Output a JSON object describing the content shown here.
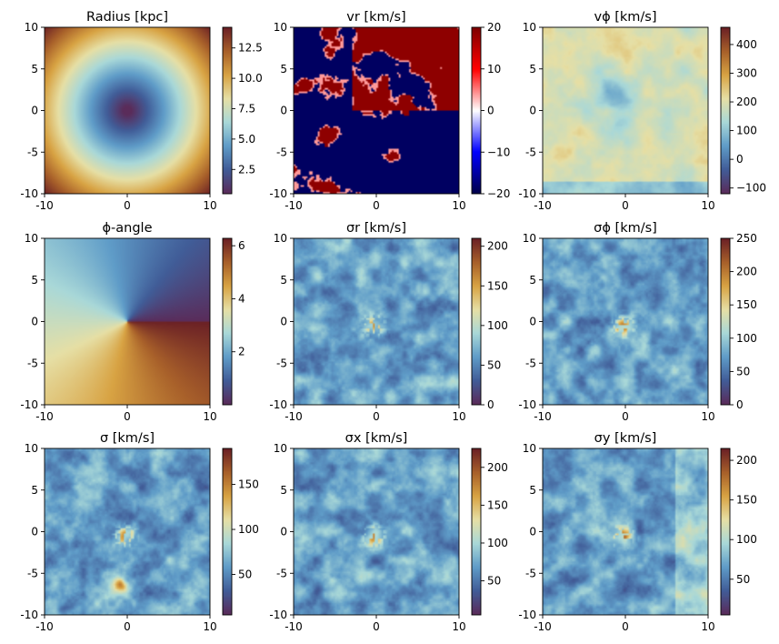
{
  "figure": {
    "colormaps": {
      "twilight_warm": [
        "#5a2c5a",
        "#415d98",
        "#5f9cc8",
        "#a9d8d8",
        "#e6dfa5",
        "#d8a343",
        "#a8602a",
        "#6b2125"
      ],
      "seismic": [
        "#00004c",
        "#0000ff",
        "#ffffff",
        "#ff0000",
        "#7f0000"
      ]
    }
  },
  "chart_data": [
    {
      "type": "heatmap",
      "title": "Radius [kpc]",
      "field": "radius",
      "colormap": "twilight_warm",
      "xlim": [
        -10,
        10
      ],
      "ylim": [
        -10,
        10
      ],
      "xticks": [
        "-10",
        "0",
        "10"
      ],
      "yticks": [
        "10",
        "5",
        "0",
        "-5",
        "-10"
      ],
      "clim": [
        0.5,
        14.2
      ],
      "cbar_ticks": [
        {
          "value": 2.5,
          "label": "2.5"
        },
        {
          "value": 5.0,
          "label": "5.0"
        },
        {
          "value": 7.5,
          "label": "7.5"
        },
        {
          "value": 10.0,
          "label": "10.0"
        },
        {
          "value": 12.5,
          "label": "12.5"
        }
      ]
    },
    {
      "type": "heatmap",
      "title": "vr [km/s]",
      "field": "vr",
      "colormap": "seismic",
      "xlim": [
        -10,
        10
      ],
      "ylim": [
        -10,
        10
      ],
      "xticks": [
        "-10",
        "0",
        "10"
      ],
      "yticks": [
        "10",
        "5",
        "0",
        "-5",
        "-10"
      ],
      "clim": [
        -20,
        20
      ],
      "cbar_ticks": [
        {
          "value": -20,
          "label": "−20"
        },
        {
          "value": -10,
          "label": "−10"
        },
        {
          "value": 0,
          "label": "0"
        },
        {
          "value": 10,
          "label": "10"
        },
        {
          "value": 20,
          "label": "20"
        }
      ]
    },
    {
      "type": "heatmap",
      "title": "vϕ [km/s]",
      "field": "vphi",
      "colormap": "twilight_warm",
      "xlim": [
        -10,
        10
      ],
      "ylim": [
        -10,
        10
      ],
      "xticks": [
        "-10",
        "0",
        "10"
      ],
      "yticks": [
        "10",
        "5",
        "0",
        "-5",
        "-10"
      ],
      "clim": [
        -120,
        460
      ],
      "cbar_ticks": [
        {
          "value": -100,
          "label": "−100"
        },
        {
          "value": 0,
          "label": "0"
        },
        {
          "value": 100,
          "label": "100"
        },
        {
          "value": 200,
          "label": "200"
        },
        {
          "value": 300,
          "label": "300"
        },
        {
          "value": 400,
          "label": "400"
        }
      ]
    },
    {
      "type": "heatmap",
      "title": "ϕ-angle",
      "field": "phi",
      "colormap": "twilight_warm",
      "xlim": [
        -10,
        10
      ],
      "ylim": [
        -10,
        10
      ],
      "xticks": [
        "-10",
        "0",
        "10"
      ],
      "yticks": [
        "10",
        "5",
        "0",
        "-5",
        "-10"
      ],
      "clim": [
        0,
        6.28
      ],
      "cbar_ticks": [
        {
          "value": 2,
          "label": "2"
        },
        {
          "value": 4,
          "label": "4"
        },
        {
          "value": 6,
          "label": "6"
        }
      ]
    },
    {
      "type": "heatmap",
      "title": "σr [km/s]",
      "field": "sigma_r",
      "colormap": "twilight_warm",
      "xlim": [
        -10,
        10
      ],
      "ylim": [
        -10,
        10
      ],
      "xticks": [
        "-10",
        "0",
        "10"
      ],
      "yticks": [
        "10",
        "5",
        "0",
        "-5",
        "-10"
      ],
      "clim": [
        0,
        210
      ],
      "cbar_ticks": [
        {
          "value": 0,
          "label": "0"
        },
        {
          "value": 50,
          "label": "50"
        },
        {
          "value": 100,
          "label": "100"
        },
        {
          "value": 150,
          "label": "150"
        },
        {
          "value": 200,
          "label": "200"
        }
      ]
    },
    {
      "type": "heatmap",
      "title": "σϕ [km/s]",
      "field": "sigma_phi",
      "colormap": "twilight_warm",
      "xlim": [
        -10,
        10
      ],
      "ylim": [
        -10,
        10
      ],
      "xticks": [
        "-10",
        "0",
        "10"
      ],
      "yticks": [
        "10",
        "5",
        "0",
        "-5",
        "-10"
      ],
      "clim": [
        0,
        250
      ],
      "cbar_ticks": [
        {
          "value": 0,
          "label": "0"
        },
        {
          "value": 50,
          "label": "50"
        },
        {
          "value": 100,
          "label": "100"
        },
        {
          "value": 150,
          "label": "150"
        },
        {
          "value": 200,
          "label": "200"
        },
        {
          "value": 250,
          "label": "250"
        }
      ]
    },
    {
      "type": "heatmap",
      "title": "σ [km/s]",
      "field": "sigma",
      "colormap": "twilight_warm",
      "xlim": [
        -10,
        10
      ],
      "ylim": [
        -10,
        10
      ],
      "xticks": [
        "-10",
        "0",
        "10"
      ],
      "yticks": [
        "10",
        "5",
        "0",
        "-5",
        "-10"
      ],
      "clim": [
        5,
        190
      ],
      "cbar_ticks": [
        {
          "value": 50,
          "label": "50"
        },
        {
          "value": 100,
          "label": "100"
        },
        {
          "value": 150,
          "label": "150"
        }
      ]
    },
    {
      "type": "heatmap",
      "title": "σx [km/s]",
      "field": "sigma_x",
      "colormap": "twilight_warm",
      "xlim": [
        -10,
        10
      ],
      "ylim": [
        -10,
        10
      ],
      "xticks": [
        "-10",
        "0",
        "10"
      ],
      "yticks": [
        "10",
        "5",
        "0",
        "-5",
        "-10"
      ],
      "clim": [
        5,
        225
      ],
      "cbar_ticks": [
        {
          "value": 50,
          "label": "50"
        },
        {
          "value": 100,
          "label": "100"
        },
        {
          "value": 150,
          "label": "150"
        },
        {
          "value": 200,
          "label": "200"
        }
      ]
    },
    {
      "type": "heatmap",
      "title": "σy [km/s]",
      "field": "sigma_y",
      "colormap": "twilight_warm",
      "xlim": [
        -10,
        10
      ],
      "ylim": [
        -10,
        10
      ],
      "xticks": [
        "-10",
        "0",
        "10"
      ],
      "yticks": [
        "10",
        "5",
        "0",
        "-5",
        "-10"
      ],
      "clim": [
        5,
        215
      ],
      "cbar_ticks": [
        {
          "value": 50,
          "label": "50"
        },
        {
          "value": 100,
          "label": "100"
        },
        {
          "value": 150,
          "label": "150"
        },
        {
          "value": 200,
          "label": "200"
        }
      ]
    }
  ]
}
